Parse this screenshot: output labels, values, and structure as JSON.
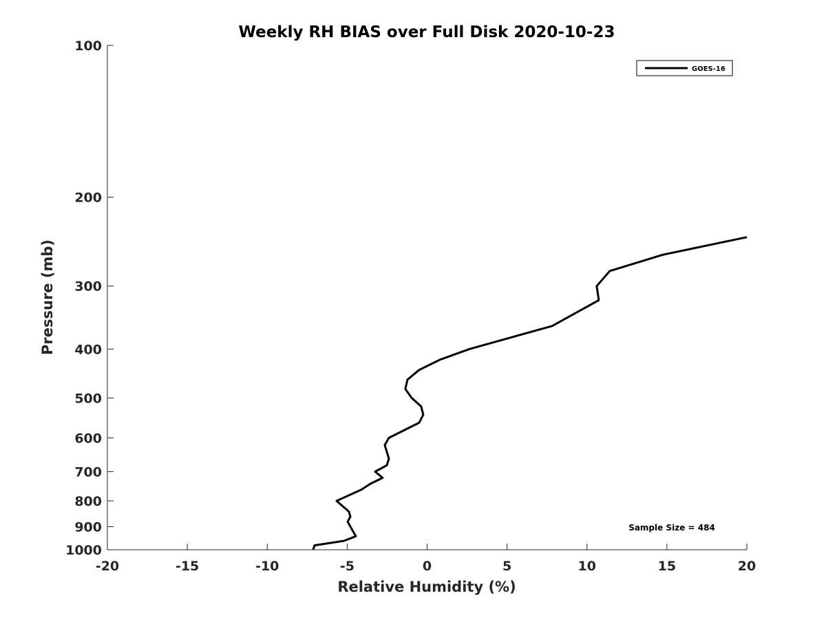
{
  "chart_data": {
    "type": "line",
    "title": "Weekly RH BIAS over Full Disk 2020-10-23",
    "xlabel": "Relative Humidity (%)",
    "ylabel": "Pressure (mb)",
    "xlim": [
      -20,
      20
    ],
    "ylim": [
      100,
      1000
    ],
    "yscale": "log",
    "yreverse": true,
    "grid": false,
    "xticks": [
      -20,
      -15,
      -10,
      -5,
      0,
      5,
      10,
      15,
      20
    ],
    "xtick_labels": [
      "-20",
      "-15",
      "-10",
      "-5",
      "0",
      "5",
      "10",
      "15",
      "20"
    ],
    "yticks": [
      100,
      200,
      300,
      400,
      500,
      600,
      700,
      800,
      900,
      1000
    ],
    "ytick_labels": [
      "100",
      "200",
      "300",
      "400",
      "500",
      "600",
      "700",
      "800",
      "900",
      "1000"
    ],
    "legend_position": "top-right",
    "annotation": "Sample Size = 484",
    "series": [
      {
        "name": "GOES-16",
        "color": "#000000",
        "x": [
          20.0,
          14.75,
          11.43,
          10.61,
          10.74,
          7.82,
          2.65,
          0.8,
          -0.5,
          -1.23,
          -1.36,
          -0.97,
          -0.37,
          -0.24,
          -0.5,
          -2.39,
          -2.65,
          -2.39,
          -2.52,
          -3.25,
          -2.78,
          -3.55,
          -4.11,
          -5.66,
          -4.89,
          -4.8,
          -4.97,
          -4.46,
          -5.19,
          -7.04,
          -7.13
        ],
        "y": [
          240,
          260,
          280,
          300,
          320,
          360,
          400,
          420,
          440,
          460,
          480,
          500,
          520,
          540,
          560,
          600,
          620,
          660,
          680,
          700,
          720,
          740,
          760,
          800,
          840,
          860,
          880,
          940,
          960,
          980,
          1000
        ]
      }
    ]
  }
}
